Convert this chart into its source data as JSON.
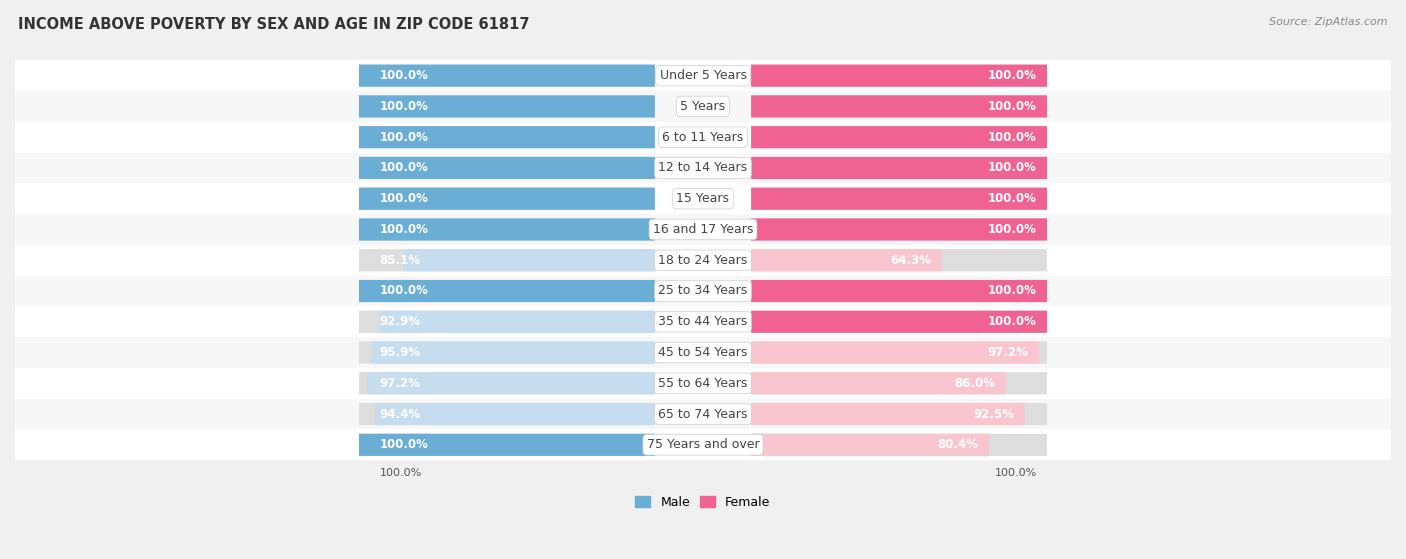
{
  "title": "INCOME ABOVE POVERTY BY SEX AND AGE IN ZIP CODE 61817",
  "source": "Source: ZipAtlas.com",
  "categories": [
    "Under 5 Years",
    "5 Years",
    "6 to 11 Years",
    "12 to 14 Years",
    "15 Years",
    "16 and 17 Years",
    "18 to 24 Years",
    "25 to 34 Years",
    "35 to 44 Years",
    "45 to 54 Years",
    "55 to 64 Years",
    "65 to 74 Years",
    "75 Years and over"
  ],
  "male_values": [
    100.0,
    100.0,
    100.0,
    100.0,
    100.0,
    100.0,
    85.1,
    100.0,
    92.9,
    95.9,
    97.2,
    94.4,
    100.0
  ],
  "female_values": [
    100.0,
    100.0,
    100.0,
    100.0,
    100.0,
    100.0,
    64.3,
    100.0,
    100.0,
    97.2,
    86.0,
    92.5,
    80.4
  ],
  "male_color": "#6aaed6",
  "female_color": "#f06292",
  "male_light_color": "#c6dcef",
  "female_light_color": "#f9c6d0",
  "background_color": "#f0f0f0",
  "bar_background": "#e8e8e8",
  "white": "#ffffff",
  "label_fontsize": 8.5,
  "title_fontsize": 10.5,
  "cat_fontsize": 9,
  "legend_fontsize": 9
}
